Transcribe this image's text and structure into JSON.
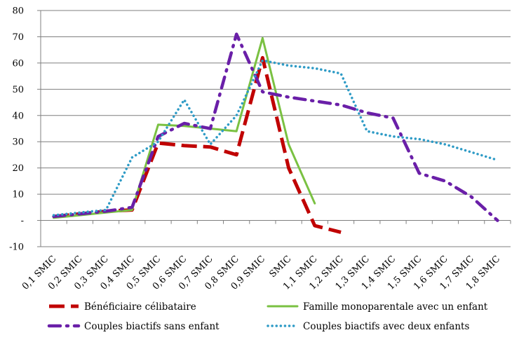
{
  "chart_data": {
    "type": "line",
    "categories": [
      "0,1 SMIC",
      "0,2 SMIC",
      "0,3 SMIC",
      "0,4 SMIC",
      "0,5 SMIC",
      "0,6 SMIC",
      "0,7 SMIC",
      "0,8 SMIC",
      "0,9 SMIC",
      "SMIC",
      "1,1 SMIC",
      "1,2 SMIC",
      "1,3 SMIC",
      "1,4 SMIC",
      "1,5 SMIC",
      "1,6 SMIC",
      "1,7 SMIC",
      "1,8 SMIC"
    ],
    "ylim": [
      -10,
      80
    ],
    "yticks": [
      {
        "value": -10,
        "label": "-10"
      },
      {
        "value": 0,
        "label": "-"
      },
      {
        "value": 10,
        "label": "10"
      },
      {
        "value": 20,
        "label": "20"
      },
      {
        "value": 30,
        "label": "30"
      },
      {
        "value": 40,
        "label": "40"
      },
      {
        "value": 50,
        "label": "50"
      },
      {
        "value": 60,
        "label": "60"
      },
      {
        "value": 70,
        "label": "70"
      },
      {
        "value": 80,
        "label": "80"
      }
    ],
    "grid": true,
    "legend_position": "bottom",
    "series": [
      {
        "name": "Bénéficiaire célibataire",
        "color": "#c00000",
        "style": "long-dash",
        "values": [
          1.5,
          2.5,
          3.5,
          4,
          29.5,
          28.5,
          28,
          25,
          62,
          20,
          -2,
          -4.5,
          null,
          null,
          null,
          null,
          null,
          null
        ]
      },
      {
        "name": "Famille monoparentale avec un enfant",
        "color": "#7ac142",
        "style": "solid",
        "values": [
          1,
          2,
          3,
          4,
          36.5,
          36,
          35,
          34,
          69.5,
          29,
          6.5,
          null,
          null,
          null,
          null,
          null,
          null,
          null
        ]
      },
      {
        "name": "Couples biactifs sans enfant",
        "color": "#6a1fa8",
        "style": "dash-dot",
        "values": [
          1.5,
          2.5,
          3.5,
          5,
          32,
          37,
          35,
          71,
          49,
          47,
          45.5,
          44,
          41,
          39,
          18,
          15,
          9,
          0
        ]
      },
      {
        "name": "Couples biactifs avec deux enfants",
        "color": "#2e9bc6",
        "style": "dotted",
        "values": [
          2,
          3,
          4,
          24,
          30,
          46,
          29,
          40,
          61,
          59,
          58,
          56,
          34,
          32,
          31,
          29,
          26,
          23
        ]
      }
    ]
  }
}
